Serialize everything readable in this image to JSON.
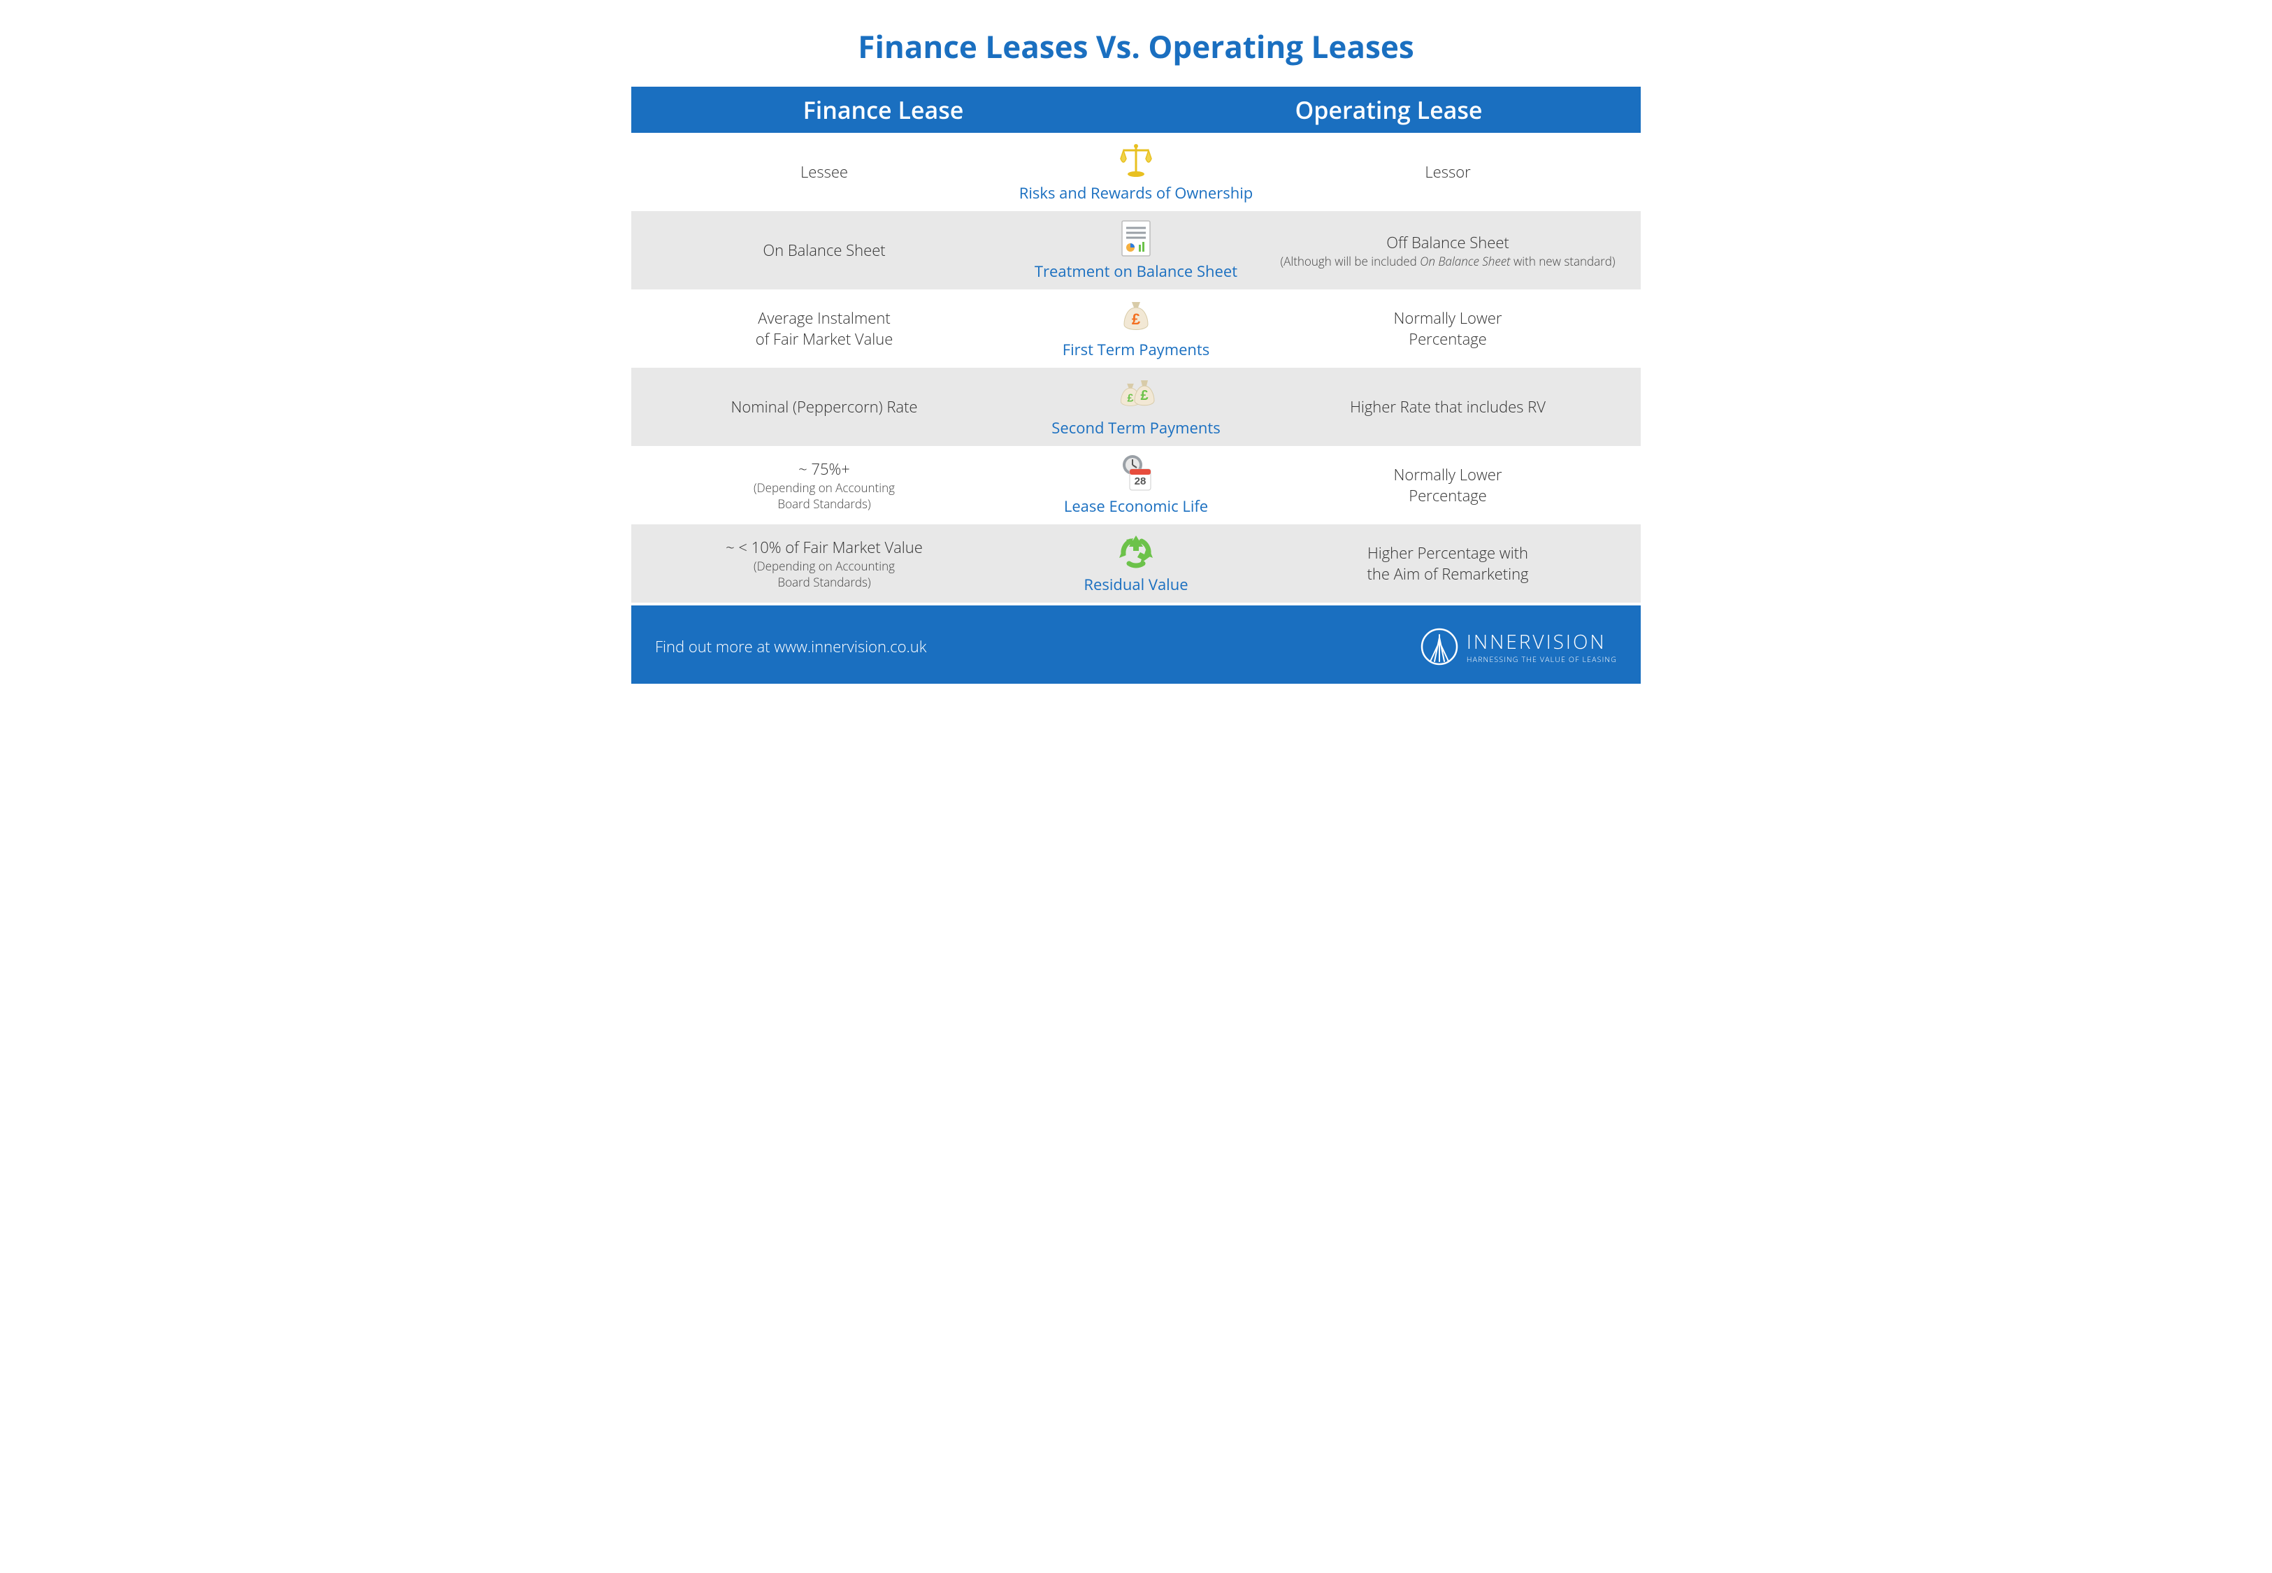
{
  "title": "Finance Leases Vs. Operating Leases",
  "columns": {
    "left": "Finance Lease",
    "right": "Operating Lease"
  },
  "rows": [
    {
      "left_main": "Lessee",
      "left_sub": "",
      "category": "Risks and Rewards of Ownership",
      "right_main": "Lessor",
      "right_sub": "",
      "icon": "scales"
    },
    {
      "left_main": "On Balance Sheet",
      "left_sub": "",
      "category": "Treatment on Balance Sheet",
      "right_main": "Off Balance Sheet",
      "right_sub": "(Although will be included <em>On Balance Sheet</em> with new standard)",
      "icon": "report"
    },
    {
      "left_main": "Average Instalment\nof Fair Market Value",
      "left_sub": "",
      "category": "First Term Payments",
      "right_main": "Normally Lower\nPercentage",
      "right_sub": "",
      "icon": "moneybag1"
    },
    {
      "left_main": "Nominal (Peppercorn) Rate",
      "left_sub": "",
      "category": "Second Term Payments",
      "right_main": "Higher Rate that includes RV",
      "right_sub": "",
      "icon": "moneybag2"
    },
    {
      "left_main": "~ 75%+",
      "left_sub": "(Depending on Accounting\nBoard Standards)",
      "category": "Lease Economic Life",
      "right_main": "Normally Lower\nPercentage",
      "right_sub": "",
      "icon": "calendar"
    },
    {
      "left_main": "~ < 10% of Fair Market Value",
      "left_sub": "(Depending on Accounting\nBoard Standards)",
      "category": "Residual Value",
      "right_main": "Higher Percentage with\nthe Aim of Remarketing",
      "right_sub": "",
      "icon": "recycle"
    }
  ],
  "footer": {
    "cta": "Find out more at www.innervision.co.uk",
    "brand_name": "INNERVISION",
    "brand_tag": "HARNESSING THE VALUE OF LEASING"
  },
  "colors": {
    "brand_blue": "#1a6fc0",
    "text": "#333333",
    "alt_row": "#e8e8e8",
    "white": "#ffffff"
  },
  "fonts": {
    "title_size": 44,
    "header_size": 34,
    "body_size": 22,
    "sub_size": 17
  }
}
